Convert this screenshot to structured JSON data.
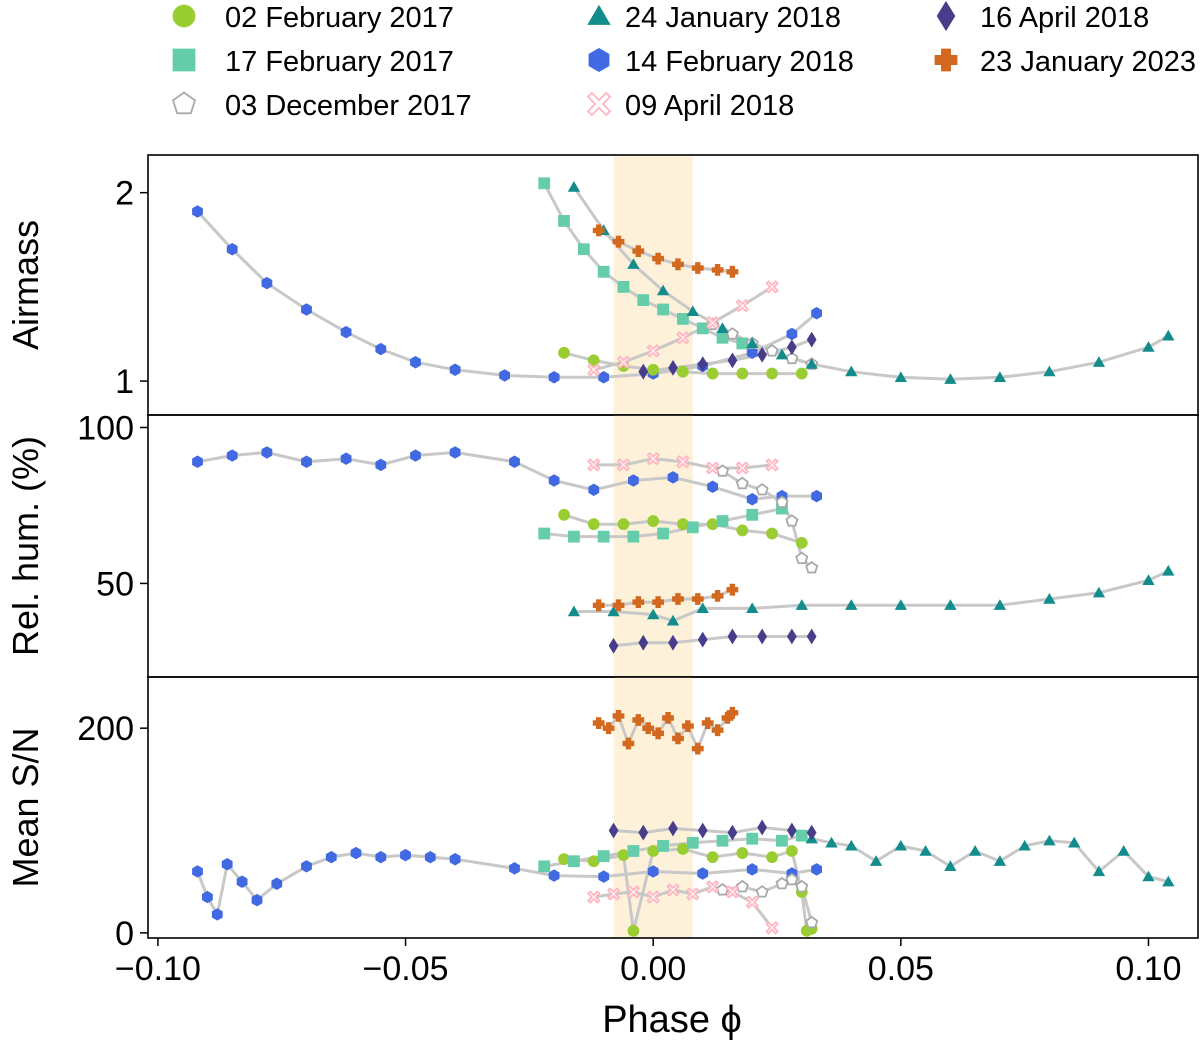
{
  "legend": [
    {
      "label": "02 February 2017",
      "marker": "circle",
      "color": "#9acd32",
      "filled": true
    },
    {
      "label": "17 February 2017",
      "marker": "square",
      "color": "#66cdaa",
      "filled": true
    },
    {
      "label": "03 December 2017",
      "marker": "pentagon",
      "color": "#a9a9a9",
      "filled": false
    },
    {
      "label": "24 January 2018",
      "marker": "triangle",
      "color": "#138c8c",
      "filled": true
    },
    {
      "label": "14 February 2018",
      "marker": "hexagon",
      "color": "#4169e1",
      "filled": true
    },
    {
      "label": "09 April 2018",
      "marker": "x",
      "color": "#ffb6c1",
      "filled": false
    },
    {
      "label": "16 April 2018",
      "marker": "diamond",
      "color": "#483d8b",
      "filled": true
    },
    {
      "label": "23 January 2023",
      "marker": "plus",
      "color": "#d2691e",
      "filled": true
    }
  ],
  "xlabel": "Phase ϕ",
  "x_ticks": [
    "−0.10",
    "−0.05",
    "0.00",
    "0.05",
    "0.10"
  ],
  "chart_data": [
    {
      "type": "scatter",
      "panel": "Airmass",
      "ylabel": "Airmass",
      "xlim": [
        -0.102,
        0.11
      ],
      "ylim": [
        0.82,
        2.2
      ],
      "y_ticks": [
        "1",
        "2"
      ],
      "shaded_band": [
        -0.008,
        0.008
      ],
      "series": [
        {
          "name": "14 February 2018",
          "x": [
            -0.092,
            -0.085,
            -0.078,
            -0.07,
            -0.062,
            -0.055,
            -0.048,
            -0.04,
            -0.03,
            -0.02,
            -0.01,
            0.0,
            0.01,
            0.02,
            0.028,
            0.033
          ],
          "y": [
            1.9,
            1.7,
            1.52,
            1.38,
            1.26,
            1.17,
            1.1,
            1.06,
            1.03,
            1.02,
            1.02,
            1.04,
            1.08,
            1.15,
            1.25,
            1.36
          ]
        },
        {
          "name": "02 February 2017",
          "x": [
            -0.018,
            -0.012,
            -0.006,
            0.0,
            0.006,
            0.012,
            0.018,
            0.024,
            0.03
          ],
          "y": [
            1.15,
            1.11,
            1.08,
            1.06,
            1.05,
            1.04,
            1.04,
            1.04,
            1.04
          ]
        },
        {
          "name": "17 February 2017",
          "x": [
            -0.022,
            -0.018,
            -0.014,
            -0.01,
            -0.006,
            -0.002,
            0.002,
            0.006,
            0.01,
            0.014,
            0.018
          ],
          "y": [
            2.05,
            1.85,
            1.7,
            1.58,
            1.5,
            1.43,
            1.38,
            1.33,
            1.28,
            1.23,
            1.2
          ]
        },
        {
          "name": "03 December 2017",
          "x": [
            0.012,
            0.016,
            0.02,
            0.024,
            0.028,
            0.032
          ],
          "y": [
            1.3,
            1.25,
            1.2,
            1.16,
            1.12,
            1.09
          ]
        },
        {
          "name": "24 January 2018",
          "x": [
            -0.016,
            -0.01,
            -0.004,
            0.002,
            0.008,
            0.014,
            0.02,
            0.026,
            0.032,
            0.04,
            0.05,
            0.06,
            0.07,
            0.08,
            0.09,
            0.1,
            0.104
          ],
          "y": [
            2.03,
            1.8,
            1.62,
            1.48,
            1.37,
            1.28,
            1.2,
            1.14,
            1.09,
            1.05,
            1.02,
            1.01,
            1.02,
            1.05,
            1.1,
            1.18,
            1.24
          ]
        },
        {
          "name": "09 April 2018",
          "x": [
            -0.012,
            -0.006,
            0.0,
            0.006,
            0.012,
            0.018,
            0.024
          ],
          "y": [
            1.06,
            1.1,
            1.16,
            1.23,
            1.31,
            1.4,
            1.5
          ]
        },
        {
          "name": "16 April 2018",
          "x": [
            -0.002,
            0.004,
            0.01,
            0.016,
            0.022,
            0.028,
            0.032
          ],
          "y": [
            1.05,
            1.07,
            1.09,
            1.11,
            1.14,
            1.18,
            1.22
          ]
        },
        {
          "name": "23 January 2023",
          "x": [
            -0.011,
            -0.007,
            -0.003,
            0.001,
            0.005,
            0.009,
            0.013,
            0.016
          ],
          "y": [
            1.8,
            1.74,
            1.69,
            1.65,
            1.62,
            1.6,
            1.59,
            1.58
          ]
        }
      ]
    },
    {
      "type": "scatter",
      "panel": "Rel. hum. (%)",
      "ylabel": "Rel. hum. (%)",
      "xlim": [
        -0.102,
        0.11
      ],
      "ylim": [
        20,
        104
      ],
      "y_ticks": [
        "50",
        "100"
      ],
      "shaded_band": [
        -0.008,
        0.008
      ],
      "series": [
        {
          "name": "14 February 2018",
          "x": [
            -0.092,
            -0.085,
            -0.078,
            -0.07,
            -0.062,
            -0.055,
            -0.048,
            -0.04,
            -0.028,
            -0.02,
            -0.012,
            -0.004,
            0.004,
            0.012,
            0.02,
            0.026,
            0.033
          ],
          "y": [
            89,
            91,
            92,
            89,
            90,
            88,
            91,
            92,
            89,
            83,
            80,
            83,
            84,
            81,
            77,
            78,
            78
          ]
        },
        {
          "name": "02 February 2017",
          "x": [
            -0.018,
            -0.012,
            -0.006,
            0.0,
            0.006,
            0.012,
            0.018,
            0.024,
            0.03
          ],
          "y": [
            72,
            69,
            69,
            70,
            69,
            69,
            67,
            66,
            63
          ]
        },
        {
          "name": "17 February 2017",
          "x": [
            -0.022,
            -0.016,
            -0.01,
            -0.004,
            0.002,
            0.008,
            0.014,
            0.02,
            0.026
          ],
          "y": [
            66,
            65,
            65,
            65,
            66,
            68,
            70,
            72,
            74
          ]
        },
        {
          "name": "03 December 2017",
          "x": [
            0.014,
            0.018,
            0.022,
            0.026,
            0.028,
            0.03,
            0.032
          ],
          "y": [
            86,
            82,
            80,
            76,
            70,
            58,
            55
          ]
        },
        {
          "name": "24 January 2018",
          "x": [
            -0.016,
            -0.008,
            0.0,
            0.004,
            0.01,
            0.02,
            0.03,
            0.04,
            0.05,
            0.06,
            0.07,
            0.08,
            0.09,
            0.1,
            0.104
          ],
          "y": [
            41,
            41,
            40,
            38,
            42,
            42,
            43,
            43,
            43,
            43,
            43,
            45,
            47,
            51,
            54
          ]
        },
        {
          "name": "09 April 2018",
          "x": [
            -0.012,
            -0.006,
            0.0,
            0.006,
            0.012,
            0.018,
            0.024
          ],
          "y": [
            88,
            88,
            90,
            89,
            87,
            87,
            88
          ]
        },
        {
          "name": "16 April 2018",
          "x": [
            -0.008,
            -0.002,
            0.004,
            0.01,
            0.016,
            0.022,
            0.028,
            0.032
          ],
          "y": [
            30,
            31,
            31,
            32,
            33,
            33,
            33,
            33
          ]
        },
        {
          "name": "23 January 2023",
          "x": [
            -0.011,
            -0.007,
            -0.003,
            0.001,
            0.005,
            0.009,
            0.013,
            0.016
          ],
          "y": [
            43,
            43,
            44,
            44,
            45,
            45,
            46,
            48
          ]
        }
      ]
    },
    {
      "type": "scatter",
      "panel": "Mean S/N",
      "ylabel": "Mean S/N",
      "xlim": [
        -0.102,
        0.11
      ],
      "ylim": [
        -5,
        250
      ],
      "y_ticks": [
        "0",
        "200"
      ],
      "shaded_band": [
        -0.008,
        0.008
      ],
      "series": [
        {
          "name": "14 February 2018",
          "x": [
            -0.092,
            -0.09,
            -0.088,
            -0.086,
            -0.083,
            -0.08,
            -0.076,
            -0.07,
            -0.065,
            -0.06,
            -0.055,
            -0.05,
            -0.045,
            -0.04,
            -0.028,
            -0.02,
            -0.01,
            0.0,
            0.01,
            0.02,
            0.028,
            0.033
          ],
          "y": [
            60,
            35,
            18,
            67,
            50,
            32,
            48,
            65,
            74,
            78,
            74,
            76,
            74,
            72,
            63,
            56,
            55,
            60,
            58,
            62,
            58,
            62
          ]
        },
        {
          "name": "02 February 2017",
          "x": [
            -0.018,
            -0.012,
            -0.006,
            -0.004,
            0.0,
            0.006,
            0.012,
            0.018,
            0.024,
            0.028,
            0.03,
            0.031,
            0.032
          ],
          "y": [
            72,
            70,
            76,
            2,
            80,
            82,
            74,
            78,
            74,
            80,
            40,
            2,
            4
          ]
        },
        {
          "name": "17 February 2017",
          "x": [
            -0.022,
            -0.016,
            -0.01,
            -0.004,
            0.002,
            0.008,
            0.014,
            0.02,
            0.026,
            0.03
          ],
          "y": [
            65,
            70,
            75,
            80,
            85,
            88,
            90,
            92,
            90,
            95
          ]
        },
        {
          "name": "03 December 2017",
          "x": [
            0.014,
            0.018,
            0.022,
            0.026,
            0.028,
            0.03,
            0.032
          ],
          "y": [
            42,
            45,
            40,
            48,
            52,
            45,
            10
          ]
        },
        {
          "name": "24 January 2018",
          "x": [
            0.032,
            0.036,
            0.04,
            0.045,
            0.05,
            0.055,
            0.06,
            0.065,
            0.07,
            0.075,
            0.08,
            0.085,
            0.09,
            0.095,
            0.1,
            0.104
          ],
          "y": [
            92,
            88,
            85,
            70,
            85,
            80,
            65,
            80,
            70,
            85,
            90,
            88,
            60,
            80,
            55,
            50
          ]
        },
        {
          "name": "09 April 2018",
          "x": [
            -0.012,
            -0.008,
            -0.004,
            0.0,
            0.004,
            0.008,
            0.012,
            0.016,
            0.02,
            0.024
          ],
          "y": [
            35,
            38,
            40,
            35,
            42,
            38,
            45,
            40,
            30,
            5
          ]
        },
        {
          "name": "16 April 2018",
          "x": [
            -0.008,
            -0.002,
            0.004,
            0.01,
            0.016,
            0.022,
            0.028,
            0.032
          ],
          "y": [
            100,
            98,
            102,
            100,
            98,
            103,
            100,
            98
          ]
        },
        {
          "name": "23 January 2023",
          "x": [
            -0.011,
            -0.009,
            -0.007,
            -0.005,
            -0.003,
            -0.001,
            0.001,
            0.003,
            0.005,
            0.007,
            0.009,
            0.011,
            0.013,
            0.015,
            0.016
          ],
          "y": [
            205,
            200,
            212,
            185,
            208,
            200,
            195,
            210,
            190,
            202,
            180,
            205,
            198,
            210,
            215
          ]
        }
      ]
    }
  ]
}
